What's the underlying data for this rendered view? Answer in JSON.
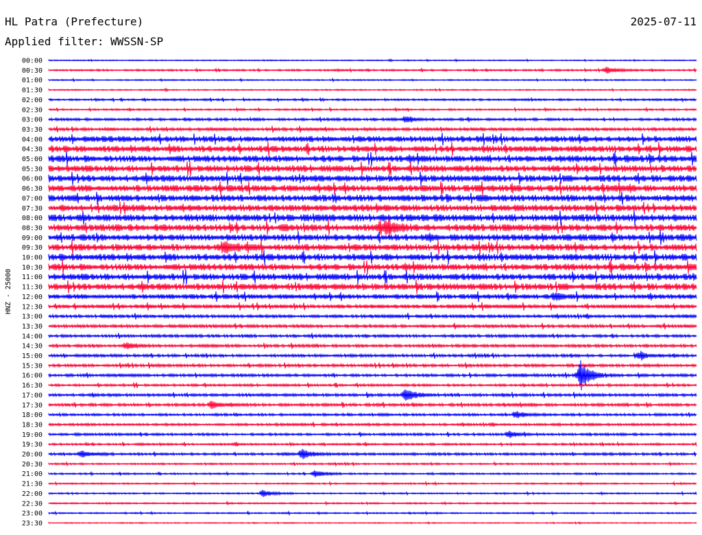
{
  "chart_data": {
    "type": "line",
    "title": "HL Patra (Prefecture)",
    "date": "2025-07-11",
    "subtitle": "Applied filter: WWSSN-SP",
    "ylabel": "HNZ - 25000",
    "colors": [
      "#0000ff",
      "#ff0033"
    ],
    "rows": [
      {
        "label": "00:00",
        "activity": 0.05
      },
      {
        "label": "00:30",
        "activity": 0.15
      },
      {
        "label": "01:00",
        "activity": 0.08
      },
      {
        "label": "01:30",
        "activity": 0.08
      },
      {
        "label": "02:00",
        "activity": 0.18
      },
      {
        "label": "02:30",
        "activity": 0.15
      },
      {
        "label": "03:00",
        "activity": 0.25
      },
      {
        "label": "03:30",
        "activity": 0.35
      },
      {
        "label": "04:00",
        "activity": 0.75
      },
      {
        "label": "04:30",
        "activity": 0.8
      },
      {
        "label": "05:00",
        "activity": 0.85
      },
      {
        "label": "05:30",
        "activity": 0.85
      },
      {
        "label": "06:00",
        "activity": 0.85
      },
      {
        "label": "06:30",
        "activity": 0.85
      },
      {
        "label": "07:00",
        "activity": 0.85
      },
      {
        "label": "07:30",
        "activity": 0.85
      },
      {
        "label": "08:00",
        "activity": 0.9
      },
      {
        "label": "08:30",
        "activity": 0.9
      },
      {
        "label": "09:00",
        "activity": 0.85
      },
      {
        "label": "09:30",
        "activity": 0.85
      },
      {
        "label": "10:00",
        "activity": 0.85
      },
      {
        "label": "10:30",
        "activity": 0.85
      },
      {
        "label": "11:00",
        "activity": 0.85
      },
      {
        "label": "11:30",
        "activity": 0.85
      },
      {
        "label": "12:00",
        "activity": 0.6
      },
      {
        "label": "12:30",
        "activity": 0.45
      },
      {
        "label": "13:00",
        "activity": 0.35
      },
      {
        "label": "13:30",
        "activity": 0.35
      },
      {
        "label": "14:00",
        "activity": 0.3
      },
      {
        "label": "14:30",
        "activity": 0.3
      },
      {
        "label": "15:00",
        "activity": 0.3
      },
      {
        "label": "15:30",
        "activity": 0.3
      },
      {
        "label": "16:00",
        "activity": 0.3
      },
      {
        "label": "16:30",
        "activity": 0.25
      },
      {
        "label": "17:00",
        "activity": 0.3
      },
      {
        "label": "17:30",
        "activity": 0.3
      },
      {
        "label": "18:00",
        "activity": 0.25
      },
      {
        "label": "18:30",
        "activity": 0.25
      },
      {
        "label": "19:00",
        "activity": 0.25
      },
      {
        "label": "19:30",
        "activity": 0.2
      },
      {
        "label": "20:00",
        "activity": 0.25
      },
      {
        "label": "20:30",
        "activity": 0.15
      },
      {
        "label": "21:00",
        "activity": 0.15
      },
      {
        "label": "21:30",
        "activity": 0.12
      },
      {
        "label": "22:00",
        "activity": 0.12
      },
      {
        "label": "22:30",
        "activity": 0.12
      },
      {
        "label": "23:00",
        "activity": 0.1
      },
      {
        "label": "23:30",
        "activity": 0.05
      }
    ],
    "events": [
      {
        "row": "00:30",
        "at": 0.86,
        "amp": 5
      },
      {
        "row": "03:00",
        "at": 0.55,
        "amp": 4
      },
      {
        "row": "08:30",
        "at": 0.52,
        "amp": 9
      },
      {
        "row": "09:30",
        "at": 0.27,
        "amp": 8
      },
      {
        "row": "12:00",
        "at": 0.78,
        "amp": 5
      },
      {
        "row": "14:30",
        "at": 0.12,
        "amp": 5
      },
      {
        "row": "15:00",
        "at": 0.91,
        "amp": 5
      },
      {
        "row": "16:00",
        "at": 0.82,
        "amp": 20
      },
      {
        "row": "17:00",
        "at": 0.55,
        "amp": 9
      },
      {
        "row": "17:30",
        "at": 0.25,
        "amp": 5
      },
      {
        "row": "18:00",
        "at": 0.72,
        "amp": 5
      },
      {
        "row": "19:00",
        "at": 0.71,
        "amp": 5
      },
      {
        "row": "20:00",
        "at": 0.39,
        "amp": 7
      },
      {
        "row": "20:00",
        "at": 0.05,
        "amp": 5
      },
      {
        "row": "21:00",
        "at": 0.41,
        "amp": 5
      },
      {
        "row": "22:00",
        "at": 0.33,
        "amp": 5
      }
    ],
    "grid": false
  }
}
